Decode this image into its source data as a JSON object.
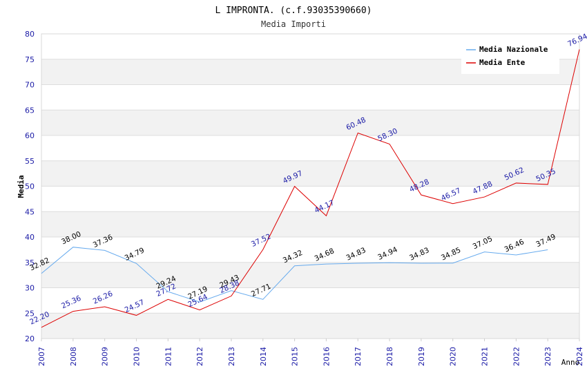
{
  "chart_data": {
    "type": "line",
    "title": "L IMPRONTA. (c.f.93035390660)",
    "subtitle": "Media Importi",
    "xlabel": "Anno",
    "ylabel": "Media",
    "ylim": [
      20,
      80
    ],
    "yticks": [
      20,
      25,
      30,
      35,
      40,
      45,
      50,
      55,
      60,
      65,
      70,
      75,
      80
    ],
    "categories": [
      "2007",
      "2008",
      "2009",
      "2010",
      "2011",
      "2012",
      "2013",
      "2014",
      "2015",
      "2016",
      "2017",
      "2018",
      "2019",
      "2020",
      "2021",
      "2022",
      "2023",
      "2024"
    ],
    "series": [
      {
        "name": "Media Nazionale",
        "color": "#66aaee",
        "label_color": "#000000",
        "values": [
          32.82,
          38.0,
          37.36,
          34.79,
          29.24,
          27.19,
          29.43,
          27.71,
          34.32,
          34.68,
          34.83,
          34.94,
          34.83,
          34.85,
          37.05,
          36.46,
          37.49,
          null
        ],
        "labels": [
          "32.82",
          "38.00",
          "37.36",
          "34.79",
          "29.24",
          "27.19",
          "29.43",
          "27.71",
          "34.32",
          "34.68",
          "34.83",
          "34.94",
          "34.83",
          "34.85",
          "37.05",
          "36.46",
          "37.49",
          ""
        ]
      },
      {
        "name": "Media Ente",
        "color": "#dd0000",
        "label_color": "#1a1aa6",
        "values": [
          22.2,
          25.36,
          26.26,
          24.57,
          27.72,
          25.64,
          28.38,
          37.52,
          49.97,
          44.17,
          60.48,
          58.3,
          48.28,
          46.57,
          47.88,
          50.62,
          50.35,
          76.94
        ],
        "labels": [
          "22.20",
          "25.36",
          "26.26",
          "24.57",
          "27.72",
          "25.64",
          "28.38",
          "37.52",
          "49.97",
          "44.17",
          "60.48",
          "58.30",
          "48.28",
          "46.57",
          "47.88",
          "50.62",
          "50.35",
          "76.94"
        ]
      }
    ],
    "grid": true,
    "legend": "top-right"
  }
}
